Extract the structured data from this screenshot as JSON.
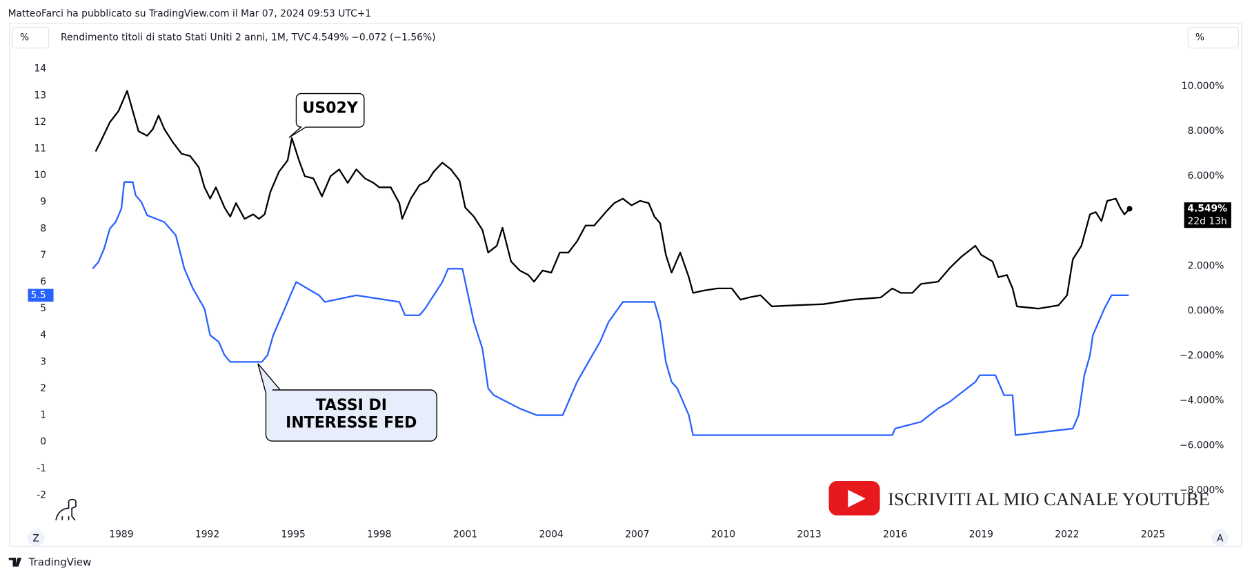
{
  "header": {
    "author_line": "MatteoFarci ha pubblicato su TradingView.com il Mar 07, 2024 09:53 UTC+1",
    "unit_left": "%",
    "unit_right": "%",
    "symbol": "Rendimento titoli di stato Stati Uniti 2 anni, 1M, TVC",
    "last": "4.549%",
    "change": "−0.072 (−1.56%)"
  },
  "chart_data": {
    "type": "line",
    "xlim": [
      1985.1,
      2026.0
    ],
    "xticks": [
      1989,
      1992,
      1995,
      1998,
      2001,
      2004,
      2007,
      2010,
      2013,
      2016,
      2019,
      2022,
      2025
    ],
    "ylim": [
      -3.21,
      14.48
    ],
    "yticks": [
      -2,
      -1,
      0,
      1,
      2,
      3,
      4,
      5,
      6,
      7,
      8,
      9,
      10,
      11,
      12,
      13,
      14
    ],
    "y2lim": [
      -9.64,
      11.35
    ],
    "y2ticks": [
      {
        "value": -8,
        "label": "−8.000%"
      },
      {
        "value": -6,
        "label": "−6.000%"
      },
      {
        "value": -4,
        "label": "−4.000%"
      },
      {
        "value": -2,
        "label": "−2.000%"
      },
      {
        "value": 0,
        "label": "0.000%"
      },
      {
        "value": 2,
        "label": "2.000%"
      },
      {
        "value": 4,
        "label": "4.000%"
      },
      {
        "value": 6,
        "label": "6.000%"
      },
      {
        "value": 8,
        "label": "8.000%"
      },
      {
        "value": 10,
        "label": "10.000%"
      }
    ],
    "grid": false,
    "series": [
      {
        "name": "TASSI DI INTERESSE FED",
        "color": "#2962ff",
        "last_label": 5.5,
        "x": [
          1988.0,
          1988.2,
          1988.4,
          1988.6,
          1988.8,
          1989.0,
          1989.1,
          1989.4,
          1989.5,
          1989.7,
          1989.9,
          1990.5,
          1990.9,
          1991.2,
          1991.5,
          1991.9,
          1992.1,
          1992.4,
          1992.6,
          1992.8,
          1993.9,
          1994.1,
          1994.3,
          1994.5,
          1994.7,
          1994.9,
          1995.1,
          1995.5,
          1995.9,
          1996.1,
          1997.2,
          1998.7,
          1998.9,
          1999.4,
          1999.6,
          1999.9,
          2000.2,
          2000.4,
          2000.9,
          2001.1,
          2001.3,
          2001.6,
          2001.8,
          2002.0,
          2002.9,
          2003.5,
          2004.4,
          2004.6,
          2004.9,
          2005.3,
          2005.7,
          2006.0,
          2006.5,
          2007.6,
          2007.8,
          2008.0,
          2008.2,
          2008.4,
          2008.8,
          2008.95,
          2015.9,
          2016.0,
          2016.9,
          2017.2,
          2017.5,
          2017.9,
          2018.2,
          2018.5,
          2018.8,
          2018.95,
          2019.5,
          2019.6,
          2019.8,
          2020.1,
          2020.2,
          2022.2,
          2022.4,
          2022.5,
          2022.6,
          2022.8,
          2022.9,
          2023.1,
          2023.3,
          2023.55,
          2024.15
        ],
        "values": [
          6.5,
          6.75,
          7.25,
          8.0,
          8.25,
          8.75,
          9.75,
          9.75,
          9.25,
          9.0,
          8.5,
          8.25,
          7.75,
          6.5,
          5.75,
          5.0,
          4.0,
          3.75,
          3.25,
          3.0,
          3.0,
          3.25,
          4.0,
          4.5,
          5.0,
          5.5,
          6.0,
          5.75,
          5.5,
          5.25,
          5.5,
          5.25,
          4.75,
          4.75,
          5.0,
          5.5,
          6.0,
          6.5,
          6.5,
          5.5,
          4.5,
          3.5,
          2.0,
          1.75,
          1.25,
          1.0,
          1.0,
          1.5,
          2.25,
          3.0,
          3.75,
          4.5,
          5.25,
          5.25,
          4.5,
          3.0,
          2.25,
          2.0,
          1.0,
          0.25,
          0.25,
          0.5,
          0.75,
          1.0,
          1.25,
          1.5,
          1.75,
          2.0,
          2.25,
          2.5,
          2.5,
          2.25,
          1.75,
          1.75,
          0.25,
          0.5,
          1.0,
          1.75,
          2.5,
          3.25,
          4.0,
          4.5,
          5.0,
          5.5,
          5.5
        ]
      },
      {
        "name": "US02Y",
        "color": "#000000",
        "axis": "y2",
        "last_label": "4.549%",
        "countdown": "22d 13h",
        "x": [
          1988.1,
          1988.3,
          1988.6,
          1988.9,
          1989.2,
          1989.4,
          1989.6,
          1989.9,
          1990.1,
          1990.3,
          1990.5,
          1990.8,
          1991.1,
          1991.4,
          1991.7,
          1991.9,
          1992.1,
          1992.3,
          1992.6,
          1992.8,
          1993.0,
          1993.3,
          1993.6,
          1993.8,
          1994.0,
          1994.2,
          1994.5,
          1994.8,
          1994.95,
          1995.2,
          1995.4,
          1995.7,
          1996.0,
          1996.3,
          1996.6,
          1996.9,
          1997.2,
          1997.5,
          1997.8,
          1998.0,
          1998.4,
          1998.7,
          1998.8,
          1999.1,
          1999.4,
          1999.7,
          1999.9,
          2000.2,
          2000.5,
          2000.8,
          2001.0,
          2001.3,
          2001.6,
          2001.8,
          2002.1,
          2002.3,
          2002.6,
          2002.9,
          2003.2,
          2003.4,
          2003.7,
          2004.0,
          2004.3,
          2004.6,
          2004.9,
          2005.2,
          2005.5,
          2005.9,
          2006.2,
          2006.5,
          2006.8,
          2007.1,
          2007.4,
          2007.6,
          2007.8,
          2008.0,
          2008.2,
          2008.5,
          2008.8,
          2008.95,
          2009.3,
          2009.8,
          2010.3,
          2010.6,
          2010.9,
          2011.3,
          2011.7,
          2012.5,
          2013.5,
          2014.5,
          2015.5,
          2015.9,
          2016.2,
          2016.6,
          2016.9,
          2017.5,
          2017.9,
          2018.3,
          2018.8,
          2019.0,
          2019.4,
          2019.6,
          2019.9,
          2020.1,
          2020.25,
          2021.0,
          2021.7,
          2022.0,
          2022.2,
          2022.5,
          2022.8,
          2023.0,
          2023.2,
          2023.4,
          2023.7,
          2023.85,
          2024.0,
          2024.18
        ],
        "values": [
          7.1,
          7.6,
          8.4,
          8.9,
          9.8,
          8.9,
          8.0,
          7.8,
          8.1,
          8.7,
          8.1,
          7.5,
          7.0,
          6.9,
          6.4,
          5.5,
          5.0,
          5.5,
          4.6,
          4.2,
          4.8,
          4.1,
          4.3,
          4.1,
          4.3,
          5.3,
          6.2,
          6.7,
          7.7,
          6.7,
          6.0,
          5.9,
          5.1,
          6.0,
          6.3,
          5.7,
          6.3,
          5.9,
          5.7,
          5.5,
          5.5,
          4.8,
          4.1,
          5.0,
          5.6,
          5.8,
          6.2,
          6.6,
          6.3,
          5.8,
          4.6,
          4.2,
          3.6,
          2.6,
          2.9,
          3.7,
          2.2,
          1.8,
          1.6,
          1.3,
          1.8,
          1.7,
          2.6,
          2.6,
          3.1,
          3.8,
          3.8,
          4.4,
          4.8,
          5.0,
          4.7,
          4.9,
          4.8,
          4.2,
          3.9,
          2.5,
          1.7,
          2.6,
          1.5,
          0.8,
          0.9,
          1.0,
          1.0,
          0.5,
          0.6,
          0.7,
          0.2,
          0.25,
          0.3,
          0.5,
          0.6,
          1.0,
          0.8,
          0.8,
          1.2,
          1.3,
          1.9,
          2.4,
          2.9,
          2.5,
          2.2,
          1.5,
          1.6,
          1.0,
          0.2,
          0.1,
          0.25,
          0.7,
          2.3,
          2.9,
          4.3,
          4.4,
          4.0,
          4.9,
          5.0,
          4.6,
          4.3,
          4.549
        ]
      }
    ]
  },
  "footer": {
    "brand": "TradingView",
    "youtube": "ISCRIVITI AL MIO CANALE YOUTUBE",
    "left_button": "Z",
    "right_button": "A"
  }
}
